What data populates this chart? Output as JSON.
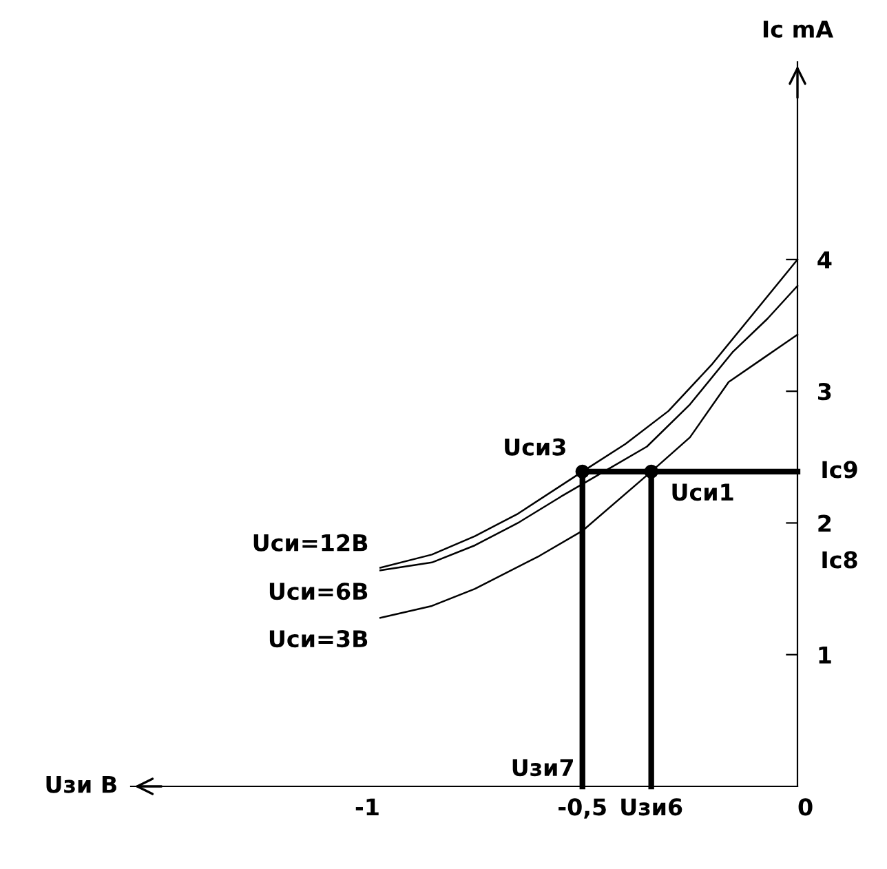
{
  "chart_data": {
    "type": "line",
    "xlabel": "Uзи B",
    "ylabel": "Ic mA",
    "xlim": [
      -1.55,
      0
    ],
    "ylim": [
      0,
      5.5
    ],
    "xticks": [
      -1,
      {
        "value": -0.5,
        "label": "-0,5"
      },
      0
    ],
    "yticks": [
      1,
      2,
      3,
      4
    ],
    "grid": false,
    "legend": false,
    "series": [
      {
        "name": "Uси=12B",
        "color": "#000000",
        "x": [
          -0.97,
          -0.85,
          -0.75,
          -0.65,
          -0.5,
          -0.4,
          -0.3,
          -0.2,
          -0.1,
          0
        ],
        "values": [
          1.66,
          1.76,
          1.9,
          2.07,
          2.39,
          2.6,
          2.85,
          3.2,
          3.6,
          4.0
        ]
      },
      {
        "name": "Uси=6B",
        "color": "#000000",
        "x": [
          -0.97,
          -0.85,
          -0.75,
          -0.65,
          -0.55,
          -0.45,
          -0.35,
          -0.25,
          -0.15,
          -0.07,
          0
        ],
        "values": [
          1.64,
          1.7,
          1.83,
          2.0,
          2.2,
          2.39,
          2.58,
          2.9,
          3.3,
          3.55,
          3.8
        ]
      },
      {
        "name": "Uси=3B",
        "color": "#000000",
        "x": [
          -0.97,
          -0.85,
          -0.75,
          -0.6,
          -0.5,
          -0.34,
          -0.25,
          -0.16,
          -0.08,
          0
        ],
        "values": [
          1.28,
          1.37,
          1.5,
          1.75,
          1.94,
          2.39,
          2.65,
          3.07,
          3.25,
          3.43
        ]
      },
      {
        "color": "#000000",
        "x": [
          -0.5,
          -0.5,
          0
        ],
        "values": [
          0,
          2.39,
          2.39
        ]
      },
      {
        "color": "#000000",
        "x": [
          -0.34,
          -0.34
        ],
        "values": [
          0,
          2.39
        ]
      },
      {
        "type": "scatter",
        "color": "#000000",
        "marker": "circle",
        "x": [
          -0.5,
          -0.34
        ],
        "values": [
          2.39,
          2.39
        ]
      }
    ],
    "annotations": [
      {
        "text": "Uси3",
        "x": -0.5,
        "y": 2.39
      },
      {
        "text": "Uси1",
        "x": -0.34,
        "y": 2.39
      },
      {
        "text": "Uзи7",
        "x": -0.5,
        "y": 0
      },
      {
        "text": "Uзи6",
        "x": -0.34,
        "y": 0
      },
      {
        "text": "Ic9",
        "x": 0,
        "y": 2.39
      },
      "Ic8"
    ]
  }
}
